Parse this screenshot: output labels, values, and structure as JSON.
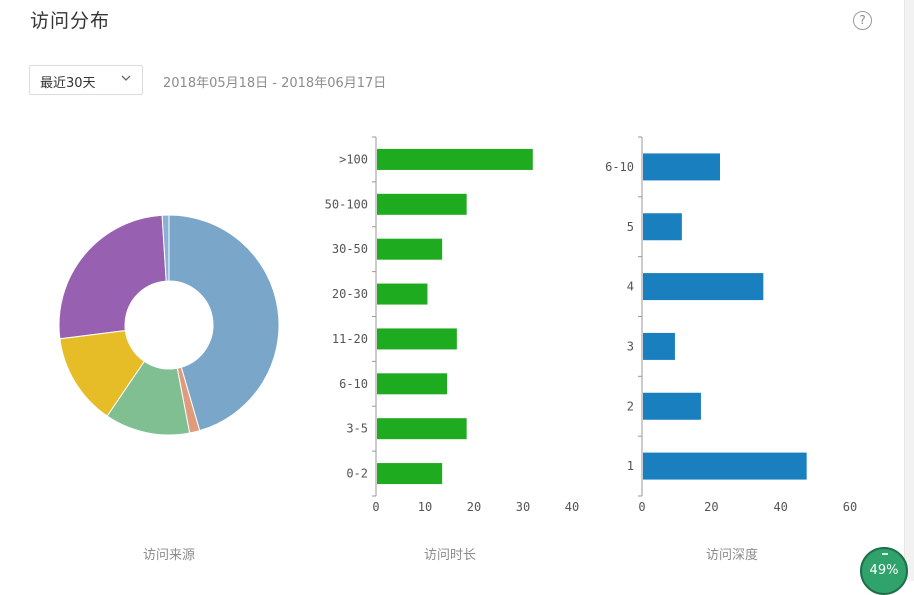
{
  "header": {
    "title": "访问分布",
    "help_icon": "question-circle-icon",
    "help_glyph": "?"
  },
  "filters": {
    "range_select": "最近30天",
    "date_range": "2018年05月18日 - 2018年06月17日"
  },
  "captions": {
    "source": "访问来源",
    "duration": "访问时长",
    "depth": "访问深度"
  },
  "badge": {
    "progress_text": "49%"
  },
  "chart_data": [
    {
      "type": "pie",
      "subtype": "donut",
      "title": "访问来源",
      "values": [
        45.5,
        1.5,
        12.5,
        13.5,
        26,
        1
      ],
      "colors": [
        "#7aa6c9",
        "#e09b7c",
        "#7fbf91",
        "#e6bd27",
        "#9860b1",
        "#8ab2d4"
      ]
    },
    {
      "type": "bar",
      "orientation": "horizontal",
      "title": "访问时长",
      "categories": [
        ">100",
        "50-100",
        "30-50",
        "20-30",
        "11-20",
        "6-10",
        "3-5",
        "0-2"
      ],
      "values": [
        32,
        18.5,
        13.5,
        10.5,
        16.5,
        14.5,
        18.5,
        13.5
      ],
      "xlim": [
        0,
        40
      ],
      "xticks": [
        0,
        10,
        20,
        30,
        40
      ],
      "color": "#1fab1f"
    },
    {
      "type": "bar",
      "orientation": "horizontal",
      "title": "访问深度",
      "categories": [
        "6-10",
        "5",
        "4",
        "3",
        "2",
        "1"
      ],
      "values": [
        22.5,
        11.5,
        35,
        9.5,
        17,
        47.5
      ],
      "xlim": [
        0,
        60
      ],
      "xticks": [
        0,
        20,
        40,
        60
      ],
      "color": "#1a7fbf"
    }
  ]
}
